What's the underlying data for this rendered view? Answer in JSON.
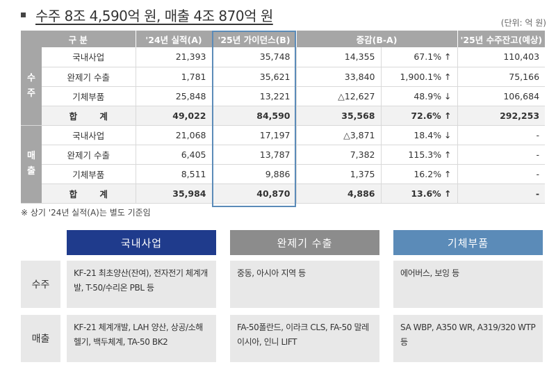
{
  "header": {
    "title": "수주 8조 4,590억 원, 매출 4조 870억 원",
    "unit": "(단위: 억 원)"
  },
  "table": {
    "columns": [
      "구 분",
      "'24년 실적(A)",
      "'25년 가이던스(B)",
      "증감(B-A)",
      "'25년 수주잔고(예상)"
    ],
    "orders_label": "수\n주",
    "sales_label": "매\n출",
    "orders": [
      {
        "item": "국내사업",
        "a": "21,393",
        "b": "35,748",
        "diff": "14,355",
        "rate": "67.1% ↑",
        "backlog": "110,403"
      },
      {
        "item": "완제기 수출",
        "a": "1,781",
        "b": "35,621",
        "diff": "33,840",
        "rate": "1,900.1% ↑",
        "backlog": "75,166"
      },
      {
        "item": "기체부품",
        "a": "25,848",
        "b": "13,221",
        "diff": "△12,627",
        "rate": "48.9% ↓",
        "backlog": "106,684"
      }
    ],
    "orders_total": {
      "item": "합 계",
      "a": "49,022",
      "b": "84,590",
      "diff": "35,568",
      "rate": "72.6% ↑",
      "backlog": "292,253"
    },
    "sales": [
      {
        "item": "국내사업",
        "a": "21,068",
        "b": "17,197",
        "diff": "△3,871",
        "rate": "18.4% ↓",
        "backlog": "-"
      },
      {
        "item": "완제기 수출",
        "a": "6,405",
        "b": "13,787",
        "diff": "7,382",
        "rate": "115.3% ↑",
        "backlog": "-"
      },
      {
        "item": "기체부품",
        "a": "8,511",
        "b": "9,886",
        "diff": "1,375",
        "rate": "16.2% ↑",
        "backlog": "-"
      }
    ],
    "sales_total": {
      "item": "합 계",
      "a": "35,984",
      "b": "40,870",
      "diff": "4,886",
      "rate": "13.6% ↑",
      "backlog": "-"
    }
  },
  "note": "※ 상기 '24년 실적(A)는 별도 기준임",
  "categories": {
    "domestic": "국내사업",
    "export": "완제기 수출",
    "parts": "기체부품"
  },
  "details": {
    "orders_label": "수주",
    "sales_label": "매출",
    "orders": {
      "domestic": "KF-21 최초양산(잔여), 전자전기 체계개발, T-50/수리온 PBL 등",
      "export": "중동, 아시아 지역 등",
      "parts": "에어버스, 보잉 등"
    },
    "sales": {
      "domestic": "KF-21 체계개발, LAH 양산, 상공/소해헬기, 백두체계, TA-50 BK2",
      "export": "FA-50폴란드, 이라크 CLS, FA-50 말레이시아, 인니 LIFT",
      "parts": "SA WBP, A350 WR, A319/320 WTP 등"
    }
  },
  "colors": {
    "header_gray": "#a6a6a6",
    "domestic_blue": "#1f3b8c",
    "export_gray": "#8c8c8c",
    "parts_blue": "#5b8bb8",
    "highlight_border": "#5b8bb8"
  }
}
